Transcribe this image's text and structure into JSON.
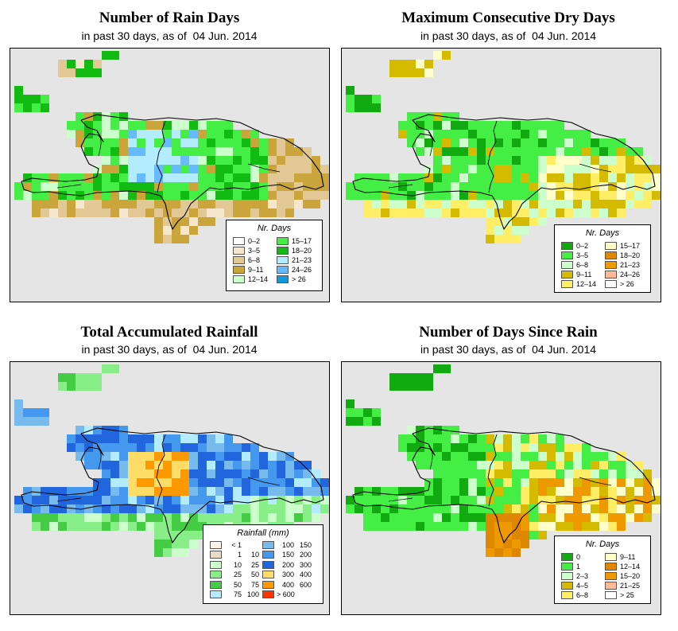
{
  "panels": [
    {
      "id": "rain-days",
      "title": "Number of Rain Days",
      "subtitle_prefix": "in past 30 days, as of",
      "date": "04 Jun. 2014",
      "legend_title": "Nr. Days",
      "legend": [
        {
          "label": "0–2",
          "color": "#ffffff"
        },
        {
          "label": "3–5",
          "color": "#f5e6cc"
        },
        {
          "label": "6–8",
          "color": "#e2c894"
        },
        {
          "label": "9–11",
          "color": "#c9a53c"
        },
        {
          "label": "12–14",
          "color": "#ccffcc"
        },
        {
          "label": "15–17",
          "color": "#44ee44"
        },
        {
          "label": "18–20",
          "color": "#11bb11"
        },
        {
          "label": "21–23",
          "color": "#b3ecff"
        },
        {
          "label": "24–26",
          "color": "#66bbff"
        },
        {
          "label": "> 26",
          "color": "#1199dd"
        }
      ]
    },
    {
      "id": "dry-days",
      "title": "Maximum Consecutive Dry Days",
      "subtitle_prefix": "in past 30 days, as of",
      "date": "04 Jun. 2014",
      "legend_title": "Nr. Days",
      "legend": [
        {
          "label": "0–2",
          "color": "#11aa11"
        },
        {
          "label": "3–5",
          "color": "#44ee44"
        },
        {
          "label": "6–8",
          "color": "#ccffcc"
        },
        {
          "label": "9–11",
          "color": "#d4bb00"
        },
        {
          "label": "12–14",
          "color": "#ffee66"
        },
        {
          "label": "15–17",
          "color": "#ffffcc"
        },
        {
          "label": "18–20",
          "color": "#dd8800"
        },
        {
          "label": "21–23",
          "color": "#ee9900"
        },
        {
          "label": "24–26",
          "color": "#ffbb99"
        },
        {
          "label": "> 26",
          "color": "#ffffff"
        }
      ]
    },
    {
      "id": "rainfall",
      "title": "Total Accumulated Rainfall",
      "subtitle_prefix": "in past 30 days, as of",
      "date": "04 Jun. 2014",
      "legend_title": "Rainfall (mm)",
      "legend": [
        {
          "lo": "< 1",
          "hi": "",
          "color": "#fff5e6"
        },
        {
          "lo": "1",
          "hi": "10",
          "color": "#e6dcc8"
        },
        {
          "lo": "10",
          "hi": "25",
          "color": "#ccffcc"
        },
        {
          "lo": "25",
          "hi": "50",
          "color": "#88ee88"
        },
        {
          "lo": "50",
          "hi": "75",
          "color": "#44cc44"
        },
        {
          "lo": "75",
          "hi": "100",
          "color": "#b3ecff"
        },
        {
          "lo": "100",
          "hi": "150",
          "color": "#77bbee"
        },
        {
          "lo": "150",
          "hi": "200",
          "color": "#4499ee"
        },
        {
          "lo": "200",
          "hi": "300",
          "color": "#2266dd"
        },
        {
          "lo": "300",
          "hi": "400",
          "color": "#ffdd66"
        },
        {
          "lo": "400",
          "hi": "600",
          "color": "#ff9900"
        },
        {
          "lo": "> 600",
          "hi": "",
          "color": "#ff3300"
        }
      ]
    },
    {
      "id": "days-since-rain",
      "title": "Number of Days Since Rain",
      "subtitle_prefix": "in past 30 days, as of",
      "date": "04 Jun. 2014",
      "legend_title": "Nr. Days",
      "legend": [
        {
          "label": "0",
          "color": "#11aa11"
        },
        {
          "label": "1",
          "color": "#44ee44"
        },
        {
          "label": "2–3",
          "color": "#ccffcc"
        },
        {
          "label": "4–5",
          "color": "#d4bb00"
        },
        {
          "label": "6–8",
          "color": "#ffee66"
        },
        {
          "label": "9–11",
          "color": "#ffffcc"
        },
        {
          "label": "12–14",
          "color": "#dd8800"
        },
        {
          "label": "15–20",
          "color": "#ee9900"
        },
        {
          "label": "21–25",
          "color": "#ffbb99"
        },
        {
          "label": "> 25",
          "color": "#ffffff"
        }
      ]
    }
  ],
  "colors": {
    "map_background": "#e5e5e5"
  }
}
